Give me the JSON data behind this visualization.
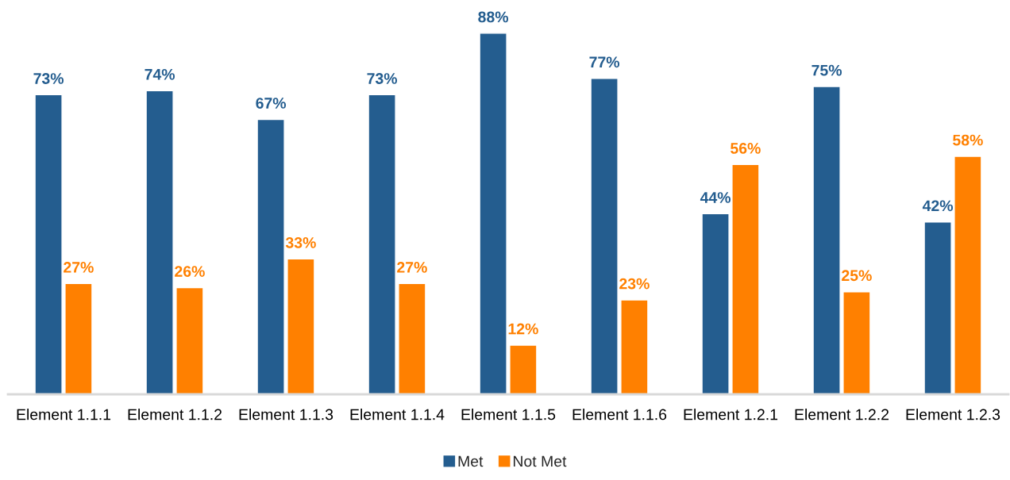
{
  "chart_data": {
    "type": "bar",
    "categories": [
      "Element 1.1.1",
      "Element 1.1.2",
      "Element 1.1.3",
      "Element 1.1.4",
      "Element 1.1.5",
      "Element 1.1.6",
      "Element 1.2.1",
      "Element 1.2.2",
      "Element 1.2.3"
    ],
    "series": [
      {
        "name": "Met",
        "color": "#245d8f",
        "values": [
          73,
          74,
          67,
          73,
          88,
          77,
          44,
          75,
          42
        ],
        "value_labels": [
          "73%",
          "74%",
          "67%",
          "73%",
          "88%",
          "77%",
          "44%",
          "75%",
          "42%"
        ]
      },
      {
        "name": "Not Met",
        "color": "#ff8000",
        "values": [
          27,
          26,
          33,
          27,
          12,
          23,
          56,
          25,
          58
        ],
        "value_labels": [
          "27%",
          "26%",
          "33%",
          "27%",
          "12%",
          "23%",
          "56%",
          "25%",
          "58%"
        ]
      }
    ],
    "tick_labels": "x",
    "legend": "bottom"
  }
}
